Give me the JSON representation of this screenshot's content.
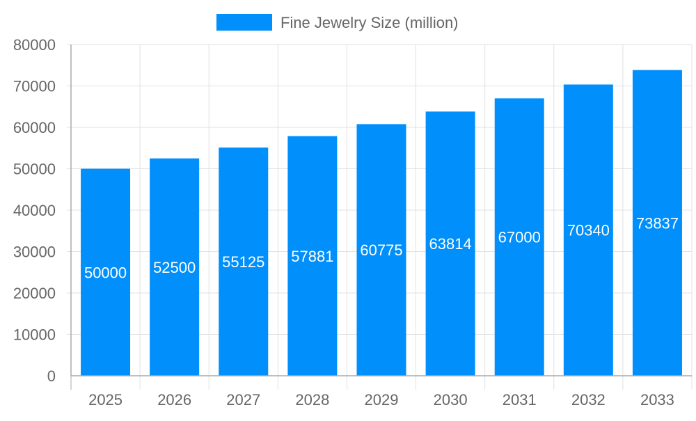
{
  "chart_data": {
    "type": "bar",
    "title": "",
    "xlabel": "",
    "ylabel": "",
    "categories": [
      "2025",
      "2026",
      "2027",
      "2028",
      "2029",
      "2030",
      "2031",
      "2032",
      "2033"
    ],
    "series": [
      {
        "name": "Fine Jewelry Size (million)",
        "values": [
          50000,
          52500,
          55125,
          57881,
          60775,
          63814,
          67000,
          70340,
          73837
        ],
        "color": "#008ffb"
      }
    ],
    "ylim": [
      0,
      80000
    ],
    "yticks": [
      0,
      10000,
      20000,
      30000,
      40000,
      50000,
      60000,
      70000,
      80000
    ],
    "grid": true,
    "legend": "top-center",
    "data_labels": true
  }
}
